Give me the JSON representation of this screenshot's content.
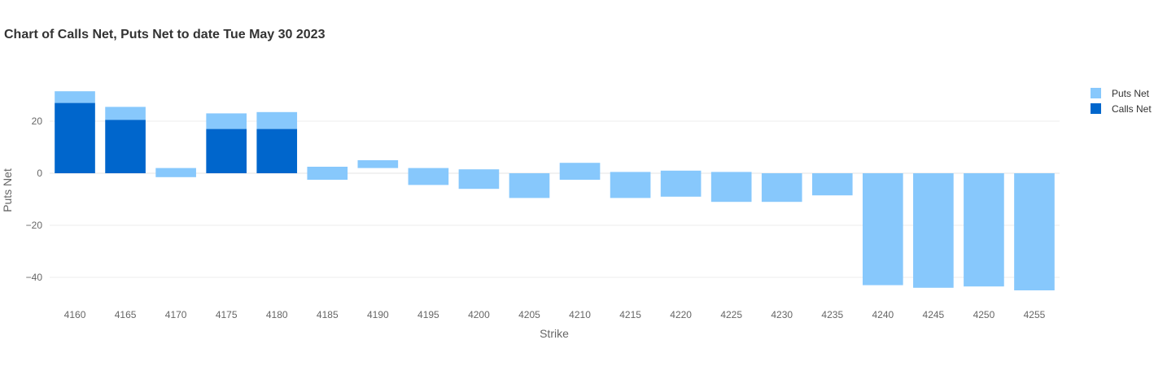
{
  "chart_data": {
    "type": "bar",
    "title": "Chart of Calls Net, Puts Net to date Tue May 30 2023",
    "xlabel": "Strike",
    "ylabel": "Puts Net",
    "categories": [
      "4160",
      "4165",
      "4170",
      "4175",
      "4180",
      "4185",
      "4190",
      "4195",
      "4200",
      "4205",
      "4210",
      "4215",
      "4220",
      "4225",
      "4230",
      "4235",
      "4240",
      "4245",
      "4250",
      "4255"
    ],
    "yticks": [
      20,
      0,
      -20,
      -40
    ],
    "ylim": [
      -50,
      37
    ],
    "grid": true,
    "legend_position": "top-right",
    "series": [
      {
        "name": "Puts Net",
        "color": "#87c8fc",
        "values": [
          4.5,
          5,
          -3.5,
          6,
          6.5,
          -5,
          -3,
          -6.5,
          -7.5,
          -9.5,
          -6.5,
          -10,
          -10,
          -11.5,
          -11,
          -8.5,
          -43,
          -44,
          -43.5,
          -45
        ],
        "bases": [
          27,
          20.5,
          2,
          17,
          17,
          2.5,
          5,
          2,
          1.5,
          0,
          4,
          0.5,
          1,
          0.5,
          0,
          0,
          0,
          0,
          0,
          0
        ]
      },
      {
        "name": "Calls Net",
        "color": "#0066cc",
        "values": [
          27,
          20.5,
          0,
          17,
          17,
          0,
          0,
          0,
          0,
          0,
          0,
          0,
          0,
          0,
          0,
          0,
          0,
          0,
          0,
          0
        ],
        "bases": [
          0,
          0,
          0,
          0,
          0,
          0,
          0,
          0,
          0,
          0,
          0,
          0,
          0,
          0,
          0,
          0,
          0,
          0,
          0,
          0
        ]
      }
    ]
  }
}
